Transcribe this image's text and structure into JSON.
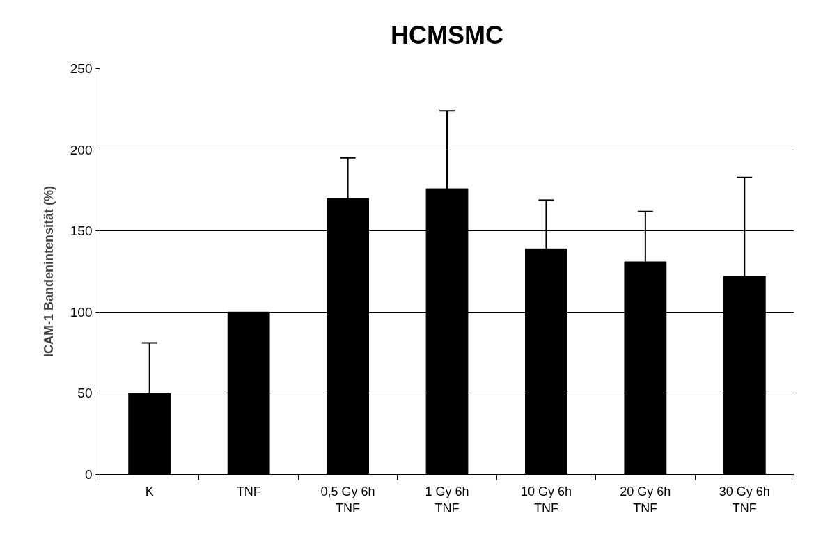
{
  "chart_data": {
    "type": "bar",
    "title": "HCMSMC",
    "ylabel": "ICAM-1 Bandenintensität (%)",
    "categories": [
      "K",
      "TNF",
      "0,5 Gy 6h\nTNF",
      "1 Gy 6h\nTNF",
      "10 Gy 6h\nTNF",
      "20 Gy 6h\nTNF",
      "30 Gy 6h\nTNF"
    ],
    "values": [
      50,
      100,
      170,
      176,
      139,
      131,
      122
    ],
    "errors": [
      31,
      null,
      25,
      48,
      30,
      31,
      61
    ],
    "color": "#000000",
    "ylim": [
      0,
      250
    ],
    "yticks": [
      0,
      50,
      100,
      150,
      200,
      250
    ],
    "grid": "y"
  }
}
